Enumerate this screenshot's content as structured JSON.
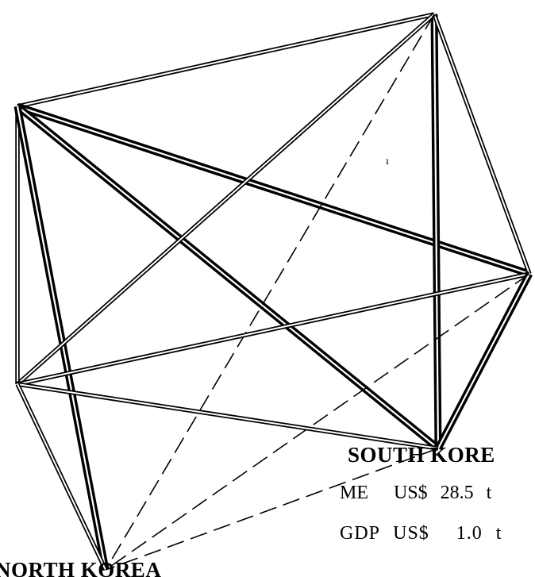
{
  "diagram": {
    "labels": {
      "south_korea": "SOUTH KORE",
      "me_line": "ME  US$ 28.5 t",
      "gdp_line": "GDP US$  1.0 t",
      "north_korea": "NORTH KOREA",
      "stray_mark": "ı"
    },
    "nodes": [
      {
        "id": "top-right"
      },
      {
        "id": "upper-left"
      },
      {
        "id": "right"
      },
      {
        "id": "lower-left"
      },
      {
        "id": "south-korea"
      },
      {
        "id": "north-korea"
      }
    ],
    "edges": [
      {
        "from": "upper-left",
        "to": "top-right",
        "style": "double"
      },
      {
        "from": "upper-left",
        "to": "lower-left",
        "style": "double"
      },
      {
        "from": "upper-left",
        "to": "right",
        "style": "heavy-double"
      },
      {
        "from": "upper-left",
        "to": "south-korea",
        "style": "heavy-double"
      },
      {
        "from": "upper-left",
        "to": "north-korea",
        "style": "heavy-double"
      },
      {
        "from": "top-right",
        "to": "south-korea",
        "style": "heavy-double"
      },
      {
        "from": "top-right",
        "to": "right",
        "style": "double"
      },
      {
        "from": "top-right",
        "to": "lower-left",
        "style": "double"
      },
      {
        "from": "top-right",
        "to": "north-korea",
        "style": "dashed"
      },
      {
        "from": "right",
        "to": "lower-left",
        "style": "double"
      },
      {
        "from": "right",
        "to": "south-korea",
        "style": "heavy-double"
      },
      {
        "from": "right",
        "to": "north-korea",
        "style": "dashed"
      },
      {
        "from": "lower-left",
        "to": "south-korea",
        "style": "double"
      },
      {
        "from": "lower-left",
        "to": "north-korea",
        "style": "double"
      },
      {
        "from": "south-korea",
        "to": "north-korea",
        "style": "dashed"
      }
    ]
  }
}
